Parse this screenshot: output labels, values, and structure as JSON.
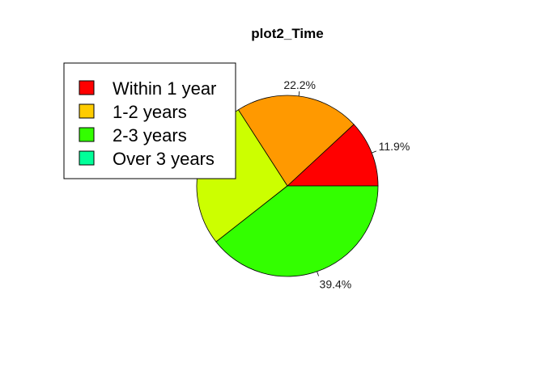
{
  "chart_data": {
    "type": "pie",
    "title": "plot2_Time",
    "slices": [
      {
        "label": "Within 1 year",
        "value": 11.9,
        "value_label": "11.9%",
        "color": "#ff0000"
      },
      {
        "label": "1-2 years",
        "value": 22.2,
        "value_label": "22.2%",
        "color": "#ff9900"
      },
      {
        "label": "2-3 years",
        "value": 26.5,
        "value_label": "",
        "color": "#ccff00"
      },
      {
        "label": "Over 3 years",
        "value": 39.4,
        "value_label": "39.4%",
        "color": "#33ff00"
      }
    ],
    "legend": {
      "position": "top-left",
      "entries": [
        {
          "label": "Within 1 year",
          "color": "#ff0000"
        },
        {
          "label": "1-2 years",
          "color": "#ffcc00"
        },
        {
          "label": "2-3 years",
          "color": "#33ff00"
        },
        {
          "label": "Over 3 years",
          "color": "#00ff99"
        }
      ]
    }
  }
}
